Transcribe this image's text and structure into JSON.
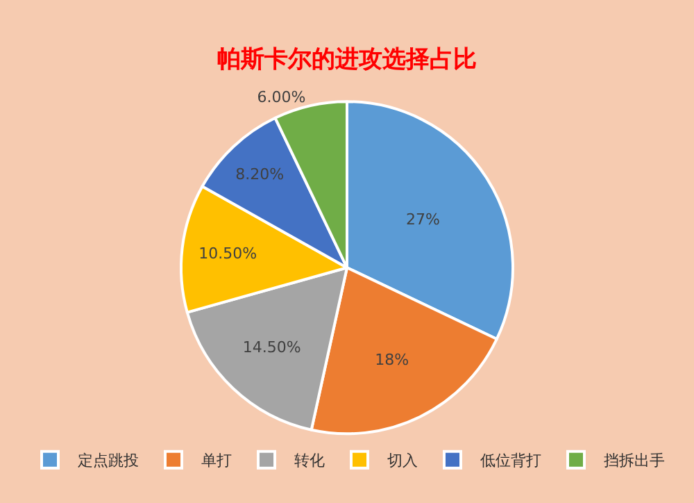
{
  "chart_data": {
    "type": "pie",
    "title": "帕斯卡尔的进攻选择占比",
    "categories": [
      "定点跳投",
      "单打",
      "转化",
      "切入",
      "低位背打",
      "挡拆出手"
    ],
    "values": [
      27,
      18,
      14.5,
      10.5,
      8.2,
      6.0
    ],
    "value_labels": [
      "27%",
      "18%",
      "14.50%",
      "10.50%",
      "8.20%",
      "6.00%"
    ],
    "colors": [
      "#5b9bd5",
      "#ed7d31",
      "#a5a5a5",
      "#ffc000",
      "#4472c4",
      "#70ad47"
    ],
    "legend": "bottom"
  }
}
